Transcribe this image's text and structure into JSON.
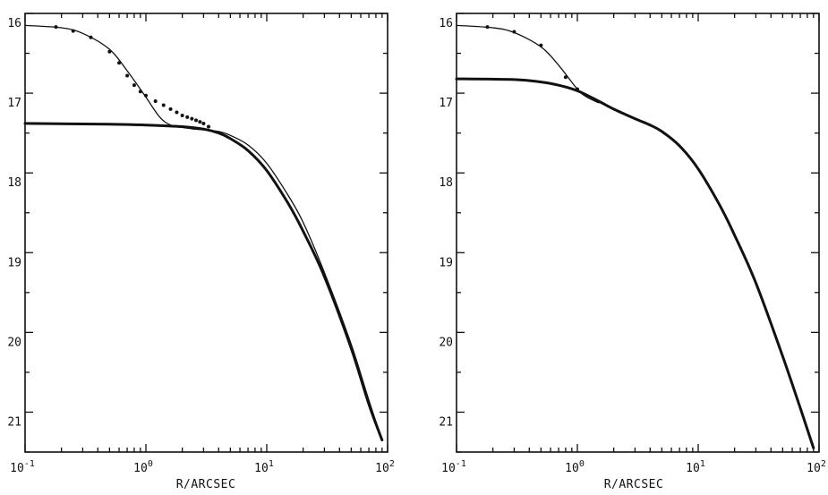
{
  "chart_data": [
    {
      "type": "line",
      "title": "",
      "xlabel": "R/ARCSEC",
      "ylabel": "",
      "xscale": "log",
      "xlim": [
        0.1,
        100
      ],
      "ylim": [
        21.5,
        16
      ],
      "y_inverted": true,
      "grid": false,
      "x_ticks": [
        {
          "value": 0.1,
          "base": "10",
          "exp": "-1"
        },
        {
          "value": 1,
          "base": "10",
          "exp": "0"
        },
        {
          "value": 10,
          "base": "10",
          "exp": "1"
        },
        {
          "value": 100,
          "base": "10",
          "exp": "2"
        }
      ],
      "y_ticks": [
        16,
        17,
        18,
        19,
        20,
        21
      ],
      "y_minor_ticks": [
        16.5,
        17.5,
        18.5,
        19.5,
        20.5,
        21.5
      ],
      "series": [
        {
          "style": "thick",
          "x": [
            0.1,
            0.5,
            1,
            2,
            3,
            4,
            5,
            7,
            10,
            15,
            20,
            30,
            50,
            70,
            90
          ],
          "y": [
            17.38,
            17.39,
            17.4,
            17.42,
            17.45,
            17.5,
            17.57,
            17.72,
            17.97,
            18.38,
            18.73,
            19.3,
            20.2,
            20.9,
            21.35
          ]
        },
        {
          "style": "thin",
          "x": [
            0.1,
            0.2,
            0.3,
            0.5,
            0.7,
            1,
            1.3,
            1.6,
            2,
            2.5,
            3,
            4,
            5,
            7,
            10,
            15,
            20,
            30,
            50,
            70,
            90
          ],
          "y": [
            16.15,
            16.18,
            16.25,
            16.45,
            16.72,
            17.05,
            17.3,
            17.4,
            17.43,
            17.45,
            17.46,
            17.48,
            17.53,
            17.65,
            17.88,
            18.28,
            18.62,
            19.25,
            20.15,
            20.85,
            21.35
          ]
        },
        {
          "style": "points",
          "x": [
            0.18,
            0.25,
            0.35,
            0.5,
            0.6,
            0.7,
            0.8,
            0.9,
            1.0,
            1.2,
            1.4,
            1.6,
            1.8,
            2.0,
            2.2,
            2.4,
            2.6,
            2.8,
            3.0,
            3.3
          ],
          "y": [
            16.17,
            16.22,
            16.3,
            16.48,
            16.62,
            16.78,
            16.9,
            16.98,
            17.03,
            17.1,
            17.15,
            17.2,
            17.24,
            17.28,
            17.3,
            17.32,
            17.34,
            17.36,
            17.38,
            17.42
          ]
        }
      ]
    },
    {
      "type": "line",
      "title": "",
      "xlabel": "R/ARCSEC",
      "ylabel": "",
      "xscale": "log",
      "xlim": [
        0.1,
        100
      ],
      "ylim": [
        21.5,
        16
      ],
      "y_inverted": true,
      "grid": false,
      "x_ticks": [
        {
          "value": 0.1,
          "base": "10",
          "exp": "-1"
        },
        {
          "value": 1,
          "base": "10",
          "exp": "0"
        },
        {
          "value": 10,
          "base": "10",
          "exp": "1"
        },
        {
          "value": 100,
          "base": "10",
          "exp": "2"
        }
      ],
      "y_ticks": [
        16,
        17,
        18,
        19,
        20,
        21
      ],
      "y_minor_ticks": [
        16.5,
        17.5,
        18.5,
        19.5,
        20.5,
        21.5
      ],
      "series": [
        {
          "style": "thick",
          "x": [
            0.1,
            0.3,
            0.5,
            0.7,
            1,
            1.5,
            2,
            3,
            4,
            5,
            7,
            10,
            15,
            20,
            30,
            50,
            70,
            90
          ],
          "y": [
            16.82,
            16.83,
            16.86,
            16.9,
            16.97,
            17.1,
            17.2,
            17.32,
            17.4,
            17.48,
            17.66,
            17.95,
            18.4,
            18.78,
            19.38,
            20.3,
            20.95,
            21.45
          ]
        },
        {
          "style": "thin",
          "x": [
            0.1,
            0.2,
            0.3,
            0.5,
            0.7,
            1.0,
            1.2,
            1.5
          ],
          "y": [
            16.15,
            16.18,
            16.24,
            16.42,
            16.65,
            16.95,
            17.05,
            17.12
          ]
        },
        {
          "style": "points",
          "x": [
            0.18,
            0.3,
            0.5,
            0.8,
            1.0
          ],
          "y": [
            16.17,
            16.23,
            16.4,
            16.8,
            16.95
          ]
        }
      ]
    }
  ]
}
